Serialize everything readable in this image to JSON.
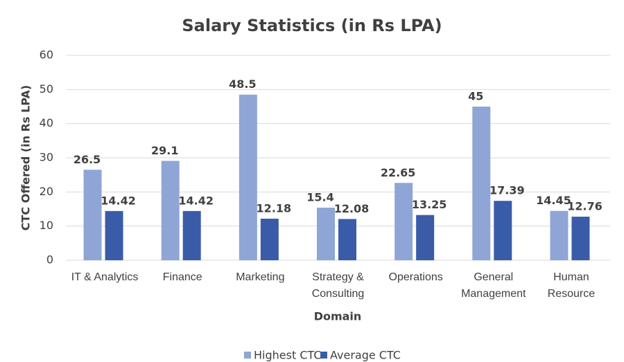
{
  "chart_data": {
    "type": "bar",
    "title": "Salary Statistics (in Rs LPA)",
    "x_label": "Domain",
    "y_label": "CTC Offered (in Rs LPA)",
    "categories": [
      "IT & Analytics",
      "Finance",
      "Marketing",
      "Strategy & Consulting",
      "Operations",
      "General Management",
      "Human Resource"
    ],
    "series": [
      {
        "name": "Highest CTC",
        "color": "#8fa5d6",
        "values": [
          26.5,
          29.1,
          48.5,
          15.4,
          22.65,
          45,
          14.45
        ]
      },
      {
        "name": "Average CTC",
        "color": "#3a5ca8",
        "values": [
          14.42,
          14.42,
          12.18,
          12.08,
          13.25,
          17.39,
          12.76
        ]
      }
    ],
    "ylim": [
      0,
      60
    ],
    "yticks": [
      0,
      10,
      20,
      30,
      40,
      50,
      60
    ],
    "grid": true,
    "legend": "bottom"
  }
}
